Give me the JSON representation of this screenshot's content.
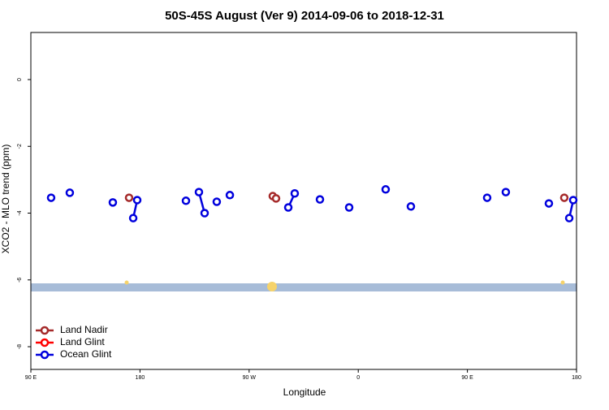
{
  "chart_data": {
    "type": "line",
    "title": "50S-45S August (Ver 9)   2014-09-06 to 2018-12-31",
    "x_label": "Longitude",
    "y_label": "XCO2 - MLO trend (ppm)",
    "xlim": [
      90,
      540
    ],
    "xticks": [
      {
        "value": 90,
        "label": "90 E"
      },
      {
        "value": 180,
        "label": "180"
      },
      {
        "value": 270,
        "label": "90 W"
      },
      {
        "value": 360,
        "label": "0"
      },
      {
        "value": 450,
        "label": "90 E"
      },
      {
        "value": 540,
        "label": "180"
      }
    ],
    "ylim": [
      -8.68,
      1.41
    ],
    "yticks": [
      -8,
      -6,
      -4,
      -2,
      0
    ],
    "legend": "bottom-left",
    "series": [
      {
        "name": "Land Nadir",
        "color": "#a52a2a",
        "x": [
          171.0,
          null,
          289.5,
          292.2,
          null,
          529.9
        ],
        "values": [
          -3.54,
          null,
          -3.49,
          -3.56,
          null,
          -3.54
        ]
      },
      {
        "name": "Land Glint",
        "color": "#ff0000",
        "x": [],
        "values": []
      },
      {
        "name": "Ocean Glint",
        "color": "#0000dd",
        "x": [
          106.7,
          null,
          122.1,
          null,
          157.6,
          null,
          174.4,
          177.7,
          null,
          217.9,
          null,
          228.6,
          233.3,
          null,
          243.3,
          null,
          254.1,
          null,
          302.3,
          307.6,
          null,
          328.4,
          null,
          352.5,
          null,
          382.6,
          null,
          403.4,
          null,
          466.3,
          null,
          481.7,
          null,
          517.2,
          null,
          534.0,
          537.3
        ],
        "values": [
          -3.54,
          null,
          -3.39,
          null,
          -3.68,
          null,
          -4.15,
          -3.61,
          null,
          -3.63,
          null,
          -3.37,
          -4.0,
          null,
          -3.66,
          null,
          -3.46,
          null,
          -3.83,
          -3.41,
          null,
          -3.59,
          null,
          -3.83,
          null,
          -3.29,
          null,
          -3.8,
          null,
          -3.54,
          null,
          -3.37,
          null,
          -3.71,
          null,
          -4.15,
          -3.61
        ]
      }
    ]
  }
}
